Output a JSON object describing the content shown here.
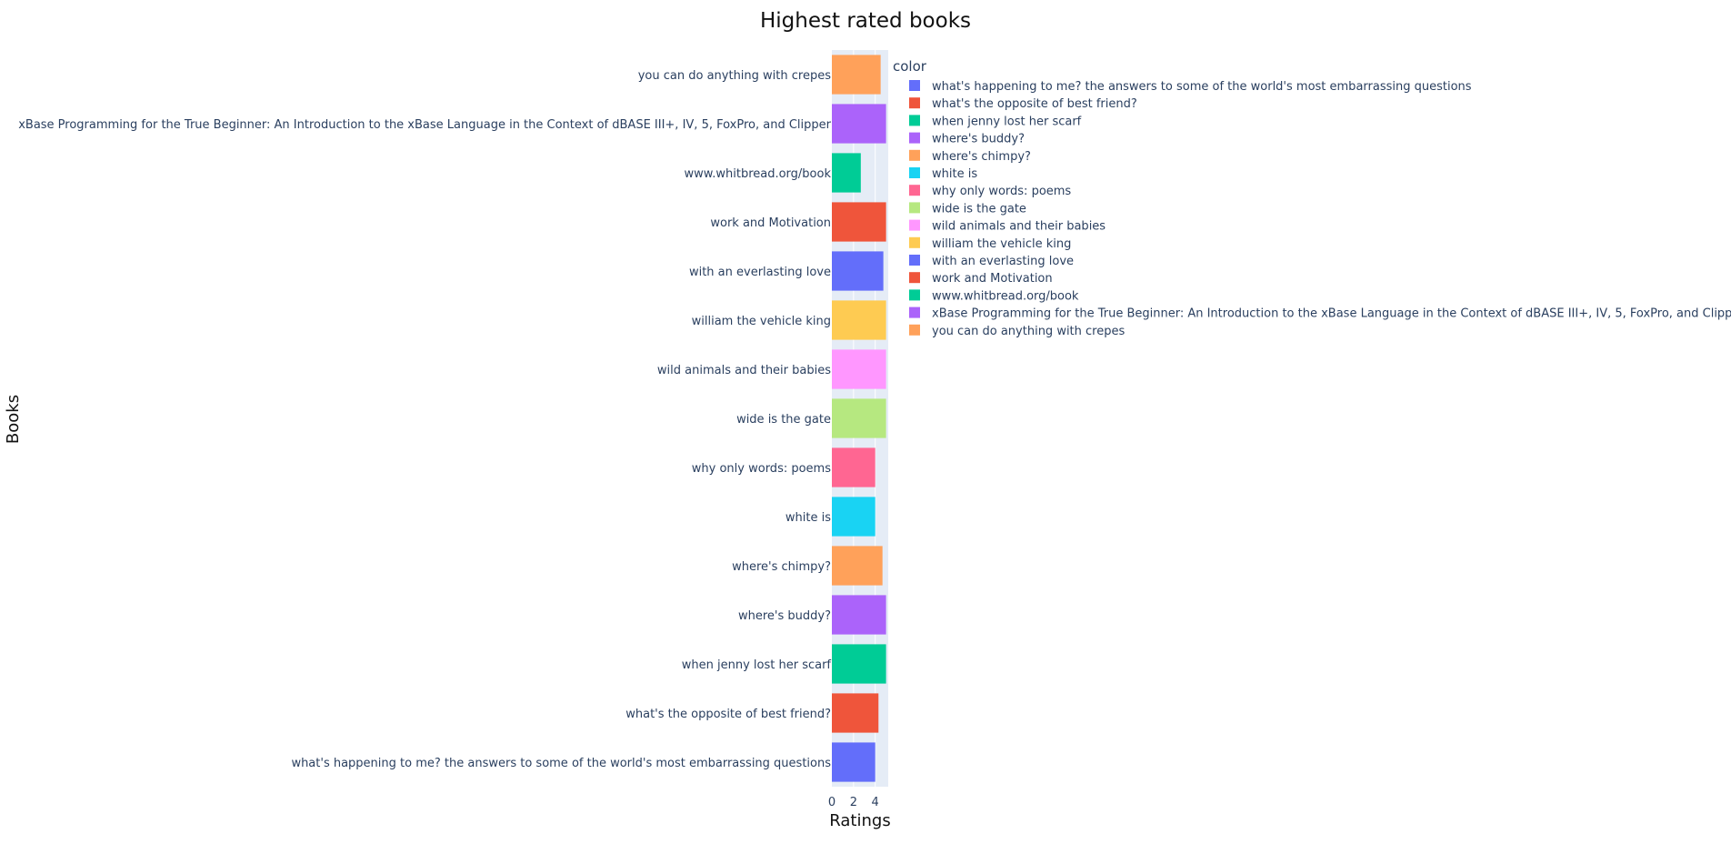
{
  "chart_data": {
    "type": "bar",
    "orientation": "horizontal",
    "title": "Highest rated books",
    "xlabel": "Ratings",
    "ylabel": "Books",
    "xlim": [
      0,
      5.2
    ],
    "x_ticks": [
      "0",
      "2",
      "4"
    ],
    "legend_title": "color",
    "legend_position": "right",
    "grid": true,
    "categories": [
      "what's happening to me? the answers to some of the world's most embarrassing questions",
      "what's the opposite of best friend?",
      "when jenny lost her scarf",
      "where's buddy?",
      "where's chimpy?",
      "white is",
      "why only words: poems",
      "wide is the gate",
      "wild animals and their babies",
      "william the vehicle king",
      "with an everlasting love",
      "work and Motivation",
      "www.whitbread.org/book",
      "xBase Programming for the True Beginner: An Introduction to the xBase Language in the Context of dBASE III+, IV, 5, FoxPro, and Clipper",
      "you can do anything with crepes"
    ],
    "values": [
      4.0,
      4.3,
      5.0,
      5.0,
      4.67,
      4.0,
      4.0,
      5.0,
      5.0,
      5.0,
      4.75,
      5.0,
      2.67,
      5.0,
      4.5
    ],
    "colors": [
      "#636EFA",
      "#EF553B",
      "#00CC96",
      "#AB63FA",
      "#FFA15A",
      "#19D3F3",
      "#FF6692",
      "#B6E880",
      "#FF97FF",
      "#FECB52",
      "#636EFA",
      "#EF553B",
      "#00CC96",
      "#AB63FA",
      "#FFA15A"
    ],
    "plot_bg": "#E5ECF6",
    "text_color": "#2a3f5f"
  }
}
